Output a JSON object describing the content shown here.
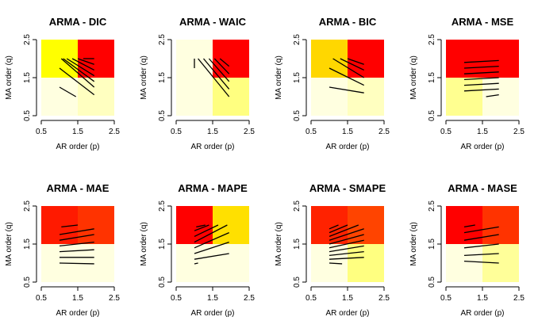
{
  "chart_data": [
    {
      "type": "heatmap",
      "title": "ARMA - DIC",
      "xlabel": "AR order (p)",
      "ylabel": "MA order (q)",
      "xlim": [
        0.5,
        2.5
      ],
      "ylim": [
        0.5,
        2.5
      ],
      "xticks": [
        "0.5",
        "1.5",
        "2.5"
      ],
      "yticks": [
        "0.5",
        "1.5",
        "2.5"
      ],
      "cells": [
        {
          "p": 1,
          "q": 1,
          "color": "#FFFFE0"
        },
        {
          "p": 2,
          "q": 1,
          "color": "#FFFFC0"
        },
        {
          "p": 1,
          "q": 2,
          "color": "#FFFF00"
        },
        {
          "p": 2,
          "q": 2,
          "color": "#FF0000"
        }
      ],
      "hatch": [
        [
          1.0,
          1.25,
          1.45,
          1.0
        ],
        [
          1.0,
          1.75,
          1.95,
          1.05
        ],
        [
          1.05,
          2.0,
          1.95,
          1.25
        ],
        [
          1.1,
          2.0,
          1.95,
          1.4
        ],
        [
          1.2,
          2.0,
          1.95,
          1.55
        ],
        [
          1.35,
          2.0,
          1.95,
          1.7
        ],
        [
          1.5,
          2.0,
          1.95,
          1.85
        ],
        [
          1.65,
          2.0,
          1.95,
          2.0
        ]
      ]
    },
    {
      "type": "heatmap",
      "title": "ARMA - WAIC",
      "xlabel": "AR order (p)",
      "ylabel": "MA order (q)",
      "xlim": [
        0.5,
        2.5
      ],
      "ylim": [
        0.5,
        2.5
      ],
      "xticks": [
        "0.5",
        "1.5",
        "2.5"
      ],
      "yticks": [
        "0.5",
        "1.5",
        "2.5"
      ],
      "cells": [
        {
          "p": 1,
          "q": 1,
          "color": "#FFFFE0"
        },
        {
          "p": 2,
          "q": 1,
          "color": "#FFFF80"
        },
        {
          "p": 1,
          "q": 2,
          "color": "#FFFFE0"
        },
        {
          "p": 2,
          "q": 2,
          "color": "#FF0000"
        }
      ],
      "hatch": [
        [
          1.0,
          1.75,
          1.0,
          2.0
        ],
        [
          1.1,
          2.0,
          1.95,
          1.0
        ],
        [
          1.25,
          2.0,
          1.95,
          1.2
        ],
        [
          1.4,
          2.0,
          1.95,
          1.4
        ],
        [
          1.55,
          2.0,
          1.95,
          1.6
        ],
        [
          1.7,
          2.0,
          1.95,
          1.8
        ]
      ]
    },
    {
      "type": "heatmap",
      "title": "ARMA - BIC",
      "xlabel": "AR order (p)",
      "ylabel": "MA order (q)",
      "xlim": [
        0.5,
        2.5
      ],
      "ylim": [
        0.5,
        2.5
      ],
      "xticks": [
        "0.5",
        "1.5",
        "2.5"
      ],
      "yticks": [
        "0.5",
        "1.5",
        "2.5"
      ],
      "cells": [
        {
          "p": 1,
          "q": 1,
          "color": "#FFFFE0"
        },
        {
          "p": 2,
          "q": 1,
          "color": "#FFFFC0"
        },
        {
          "p": 1,
          "q": 2,
          "color": "#FFD700"
        },
        {
          "p": 2,
          "q": 2,
          "color": "#FF0000"
        }
      ],
      "hatch": [
        [
          1.0,
          1.25,
          1.95,
          1.1
        ],
        [
          1.0,
          1.75,
          1.95,
          1.3
        ],
        [
          1.1,
          2.0,
          1.95,
          1.5
        ],
        [
          1.3,
          2.0,
          1.95,
          1.7
        ],
        [
          1.5,
          2.0,
          1.95,
          1.85
        ]
      ]
    },
    {
      "type": "heatmap",
      "title": "ARMA - MSE",
      "xlabel": "AR order (p)",
      "ylabel": "MA order (q)",
      "xlim": [
        0.5,
        2.5
      ],
      "ylim": [
        0.5,
        2.5
      ],
      "xticks": [
        "0.5",
        "1.5",
        "2.5"
      ],
      "yticks": [
        "0.5",
        "1.5",
        "2.5"
      ],
      "cells": [
        {
          "p": 1,
          "q": 1,
          "color": "#FFFF90"
        },
        {
          "p": 2,
          "q": 1,
          "color": "#FFFFE0"
        },
        {
          "p": 1,
          "q": 2,
          "color": "#FF0000"
        },
        {
          "p": 2,
          "q": 2,
          "color": "#FF0000"
        }
      ],
      "hatch": [
        [
          1.6,
          1.0,
          1.95,
          1.05
        ],
        [
          1.0,
          1.15,
          1.95,
          1.2
        ],
        [
          1.0,
          1.3,
          1.95,
          1.35
        ],
        [
          1.0,
          1.45,
          1.95,
          1.5
        ],
        [
          1.0,
          1.6,
          1.95,
          1.65
        ],
        [
          1.0,
          1.75,
          1.95,
          1.8
        ],
        [
          1.0,
          1.9,
          1.95,
          1.95
        ]
      ]
    },
    {
      "type": "heatmap",
      "title": "ARMA - MAE",
      "xlabel": "AR order (p)",
      "ylabel": "MA order (q)",
      "xlim": [
        0.5,
        2.5
      ],
      "ylim": [
        0.5,
        2.5
      ],
      "xticks": [
        "0.5",
        "1.5",
        "2.5"
      ],
      "yticks": [
        "0.5",
        "1.5",
        "2.5"
      ],
      "cells": [
        {
          "p": 1,
          "q": 1,
          "color": "#FFFFE0"
        },
        {
          "p": 2,
          "q": 1,
          "color": "#FFFFE0"
        },
        {
          "p": 1,
          "q": 2,
          "color": "#FF1A00"
        },
        {
          "p": 2,
          "q": 2,
          "color": "#FF3300"
        }
      ],
      "hatch": [
        [
          1.0,
          1.0,
          1.95,
          0.98
        ],
        [
          1.0,
          1.15,
          1.95,
          1.15
        ],
        [
          1.0,
          1.3,
          1.95,
          1.35
        ],
        [
          1.0,
          1.45,
          1.95,
          1.55
        ],
        [
          1.0,
          1.6,
          1.95,
          1.75
        ],
        [
          1.0,
          1.75,
          1.95,
          1.9
        ],
        [
          1.05,
          1.95,
          1.5,
          2.0
        ]
      ]
    },
    {
      "type": "heatmap",
      "title": "ARMA - MAPE",
      "xlabel": "AR order (p)",
      "ylabel": "MA order (q)",
      "xlim": [
        0.5,
        2.5
      ],
      "ylim": [
        0.5,
        2.5
      ],
      "xticks": [
        "0.5",
        "1.5",
        "2.5"
      ],
      "yticks": [
        "0.5",
        "1.5",
        "2.5"
      ],
      "cells": [
        {
          "p": 1,
          "q": 1,
          "color": "#FFFFE0"
        },
        {
          "p": 2,
          "q": 1,
          "color": "#FFFFE0"
        },
        {
          "p": 1,
          "q": 2,
          "color": "#FF0000"
        },
        {
          "p": 2,
          "q": 2,
          "color": "#FFE000"
        }
      ],
      "hatch": [
        [
          1.0,
          0.98,
          1.1,
          1.0
        ],
        [
          1.0,
          1.1,
          1.95,
          1.25
        ],
        [
          1.0,
          1.25,
          1.95,
          1.55
        ],
        [
          1.0,
          1.4,
          1.95,
          1.8
        ],
        [
          1.0,
          1.55,
          1.9,
          2.0
        ],
        [
          1.0,
          1.7,
          1.65,
          2.0
        ],
        [
          1.0,
          1.85,
          1.4,
          2.0
        ],
        [
          1.05,
          1.95,
          1.3,
          2.0
        ]
      ]
    },
    {
      "type": "heatmap",
      "title": "ARMA - SMAPE",
      "xlabel": "AR order (p)",
      "ylabel": "MA order (q)",
      "xlim": [
        0.5,
        2.5
      ],
      "ylim": [
        0.5,
        2.5
      ],
      "xticks": [
        "0.5",
        "1.5",
        "2.5"
      ],
      "yticks": [
        "0.5",
        "1.5",
        "2.5"
      ],
      "cells": [
        {
          "p": 1,
          "q": 1,
          "color": "#FFFFE0"
        },
        {
          "p": 2,
          "q": 1,
          "color": "#FFFF80"
        },
        {
          "p": 1,
          "q": 2,
          "color": "#FF2200"
        },
        {
          "p": 2,
          "q": 2,
          "color": "#FF4400"
        }
      ],
      "hatch": [
        [
          1.0,
          1.0,
          1.35,
          0.98
        ],
        [
          1.0,
          1.1,
          1.95,
          1.15
        ],
        [
          1.0,
          1.2,
          1.95,
          1.3
        ],
        [
          1.0,
          1.3,
          1.95,
          1.45
        ],
        [
          1.0,
          1.4,
          1.95,
          1.6
        ],
        [
          1.0,
          1.5,
          1.95,
          1.75
        ],
        [
          1.0,
          1.6,
          1.95,
          1.9
        ],
        [
          1.0,
          1.7,
          1.8,
          2.0
        ],
        [
          1.0,
          1.8,
          1.5,
          2.0
        ],
        [
          1.0,
          1.9,
          1.25,
          2.0
        ]
      ]
    },
    {
      "type": "heatmap",
      "title": "ARMA - MASE",
      "xlabel": "AR order (p)",
      "ylabel": "MA order (q)",
      "xlim": [
        0.5,
        2.5
      ],
      "ylim": [
        0.5,
        2.5
      ],
      "xticks": [
        "0.5",
        "1.5",
        "2.5"
      ],
      "yticks": [
        "0.5",
        "1.5",
        "2.5"
      ],
      "cells": [
        {
          "p": 1,
          "q": 1,
          "color": "#FFFFE0"
        },
        {
          "p": 2,
          "q": 1,
          "color": "#FFFF99"
        },
        {
          "p": 1,
          "q": 2,
          "color": "#FF0000"
        },
        {
          "p": 2,
          "q": 2,
          "color": "#FF3300"
        }
      ],
      "hatch": [
        [
          1.0,
          1.05,
          1.95,
          1.0
        ],
        [
          1.0,
          1.2,
          1.95,
          1.25
        ],
        [
          1.0,
          1.4,
          1.95,
          1.5
        ],
        [
          1.0,
          1.6,
          1.95,
          1.75
        ],
        [
          1.0,
          1.8,
          1.95,
          1.95
        ],
        [
          1.0,
          1.95,
          1.3,
          2.0
        ]
      ]
    }
  ]
}
